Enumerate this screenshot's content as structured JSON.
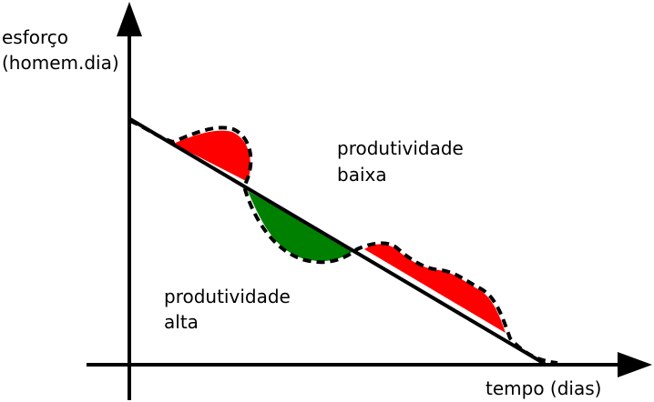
{
  "axes": {
    "y_label_line1": "esforço",
    "y_label_line2": "(homem.dia)",
    "x_label": "tempo (dias)"
  },
  "regions": {
    "low_productivity_line1": "produtividade",
    "low_productivity_line2": "baixa",
    "high_productivity_line1": "produtividade",
    "high_productivity_line2": "alta"
  },
  "colors": {
    "above_plan": "#ff0000",
    "below_plan": "#008000",
    "axis": "#000000"
  }
}
